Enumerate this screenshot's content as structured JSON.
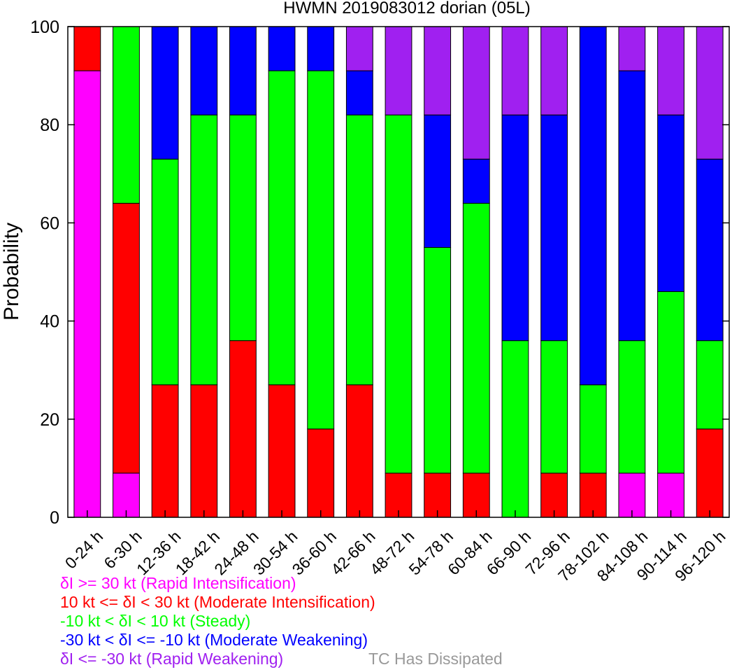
{
  "chart_data": {
    "type": "bar",
    "stacked": true,
    "title": "HWMN 2019083012 dorian (05L)",
    "xlabel": "",
    "ylabel": "Probability",
    "ylim": [
      0,
      100
    ],
    "yticks": [
      0,
      20,
      40,
      60,
      80,
      100
    ],
    "grid": false,
    "categories": [
      "0-24 h",
      "6-30 h",
      "12-36 h",
      "18-42 h",
      "24-48 h",
      "30-54 h",
      "36-60 h",
      "42-66 h",
      "48-72 h",
      "54-78 h",
      "60-84 h",
      "66-90 h",
      "72-96 h",
      "78-102 h",
      "84-108 h",
      "90-114 h",
      "96-120 h"
    ],
    "series": [
      {
        "name": "δI >= 30 kt (Rapid Intensification)",
        "color": "#ff00ff",
        "values": [
          91,
          9,
          0,
          0,
          0,
          0,
          0,
          0,
          0,
          0,
          0,
          0,
          0,
          0,
          9,
          9,
          0
        ]
      },
      {
        "name": "10 kt <= δI < 30 kt (Moderate Intensification)",
        "color": "#ff0000",
        "values": [
          9,
          55,
          27,
          27,
          36,
          27,
          18,
          27,
          9,
          9,
          9,
          0,
          9,
          9,
          0,
          0,
          18
        ]
      },
      {
        "name": "-10 kt < δI < 10 kt (Steady)",
        "color": "#00ff00",
        "values": [
          0,
          36,
          46,
          55,
          46,
          64,
          73,
          55,
          73,
          46,
          55,
          36,
          27,
          18,
          27,
          37,
          18
        ]
      },
      {
        "name": "-30 kt < δI <= -10 kt (Moderate Weakening)",
        "color": "#0000ff",
        "values": [
          0,
          0,
          27,
          18,
          18,
          9,
          9,
          9,
          0,
          27,
          9,
          46,
          46,
          73,
          55,
          36,
          37
        ]
      },
      {
        "name": "δI <= -30 kt (Rapid Weakening)",
        "color": "#a020f0",
        "values": [
          0,
          0,
          0,
          0,
          0,
          0,
          0,
          9,
          18,
          18,
          27,
          18,
          18,
          0,
          9,
          18,
          27
        ]
      }
    ],
    "extra_legend": {
      "name": "TC Has Dissipated",
      "color": "#999999"
    }
  }
}
